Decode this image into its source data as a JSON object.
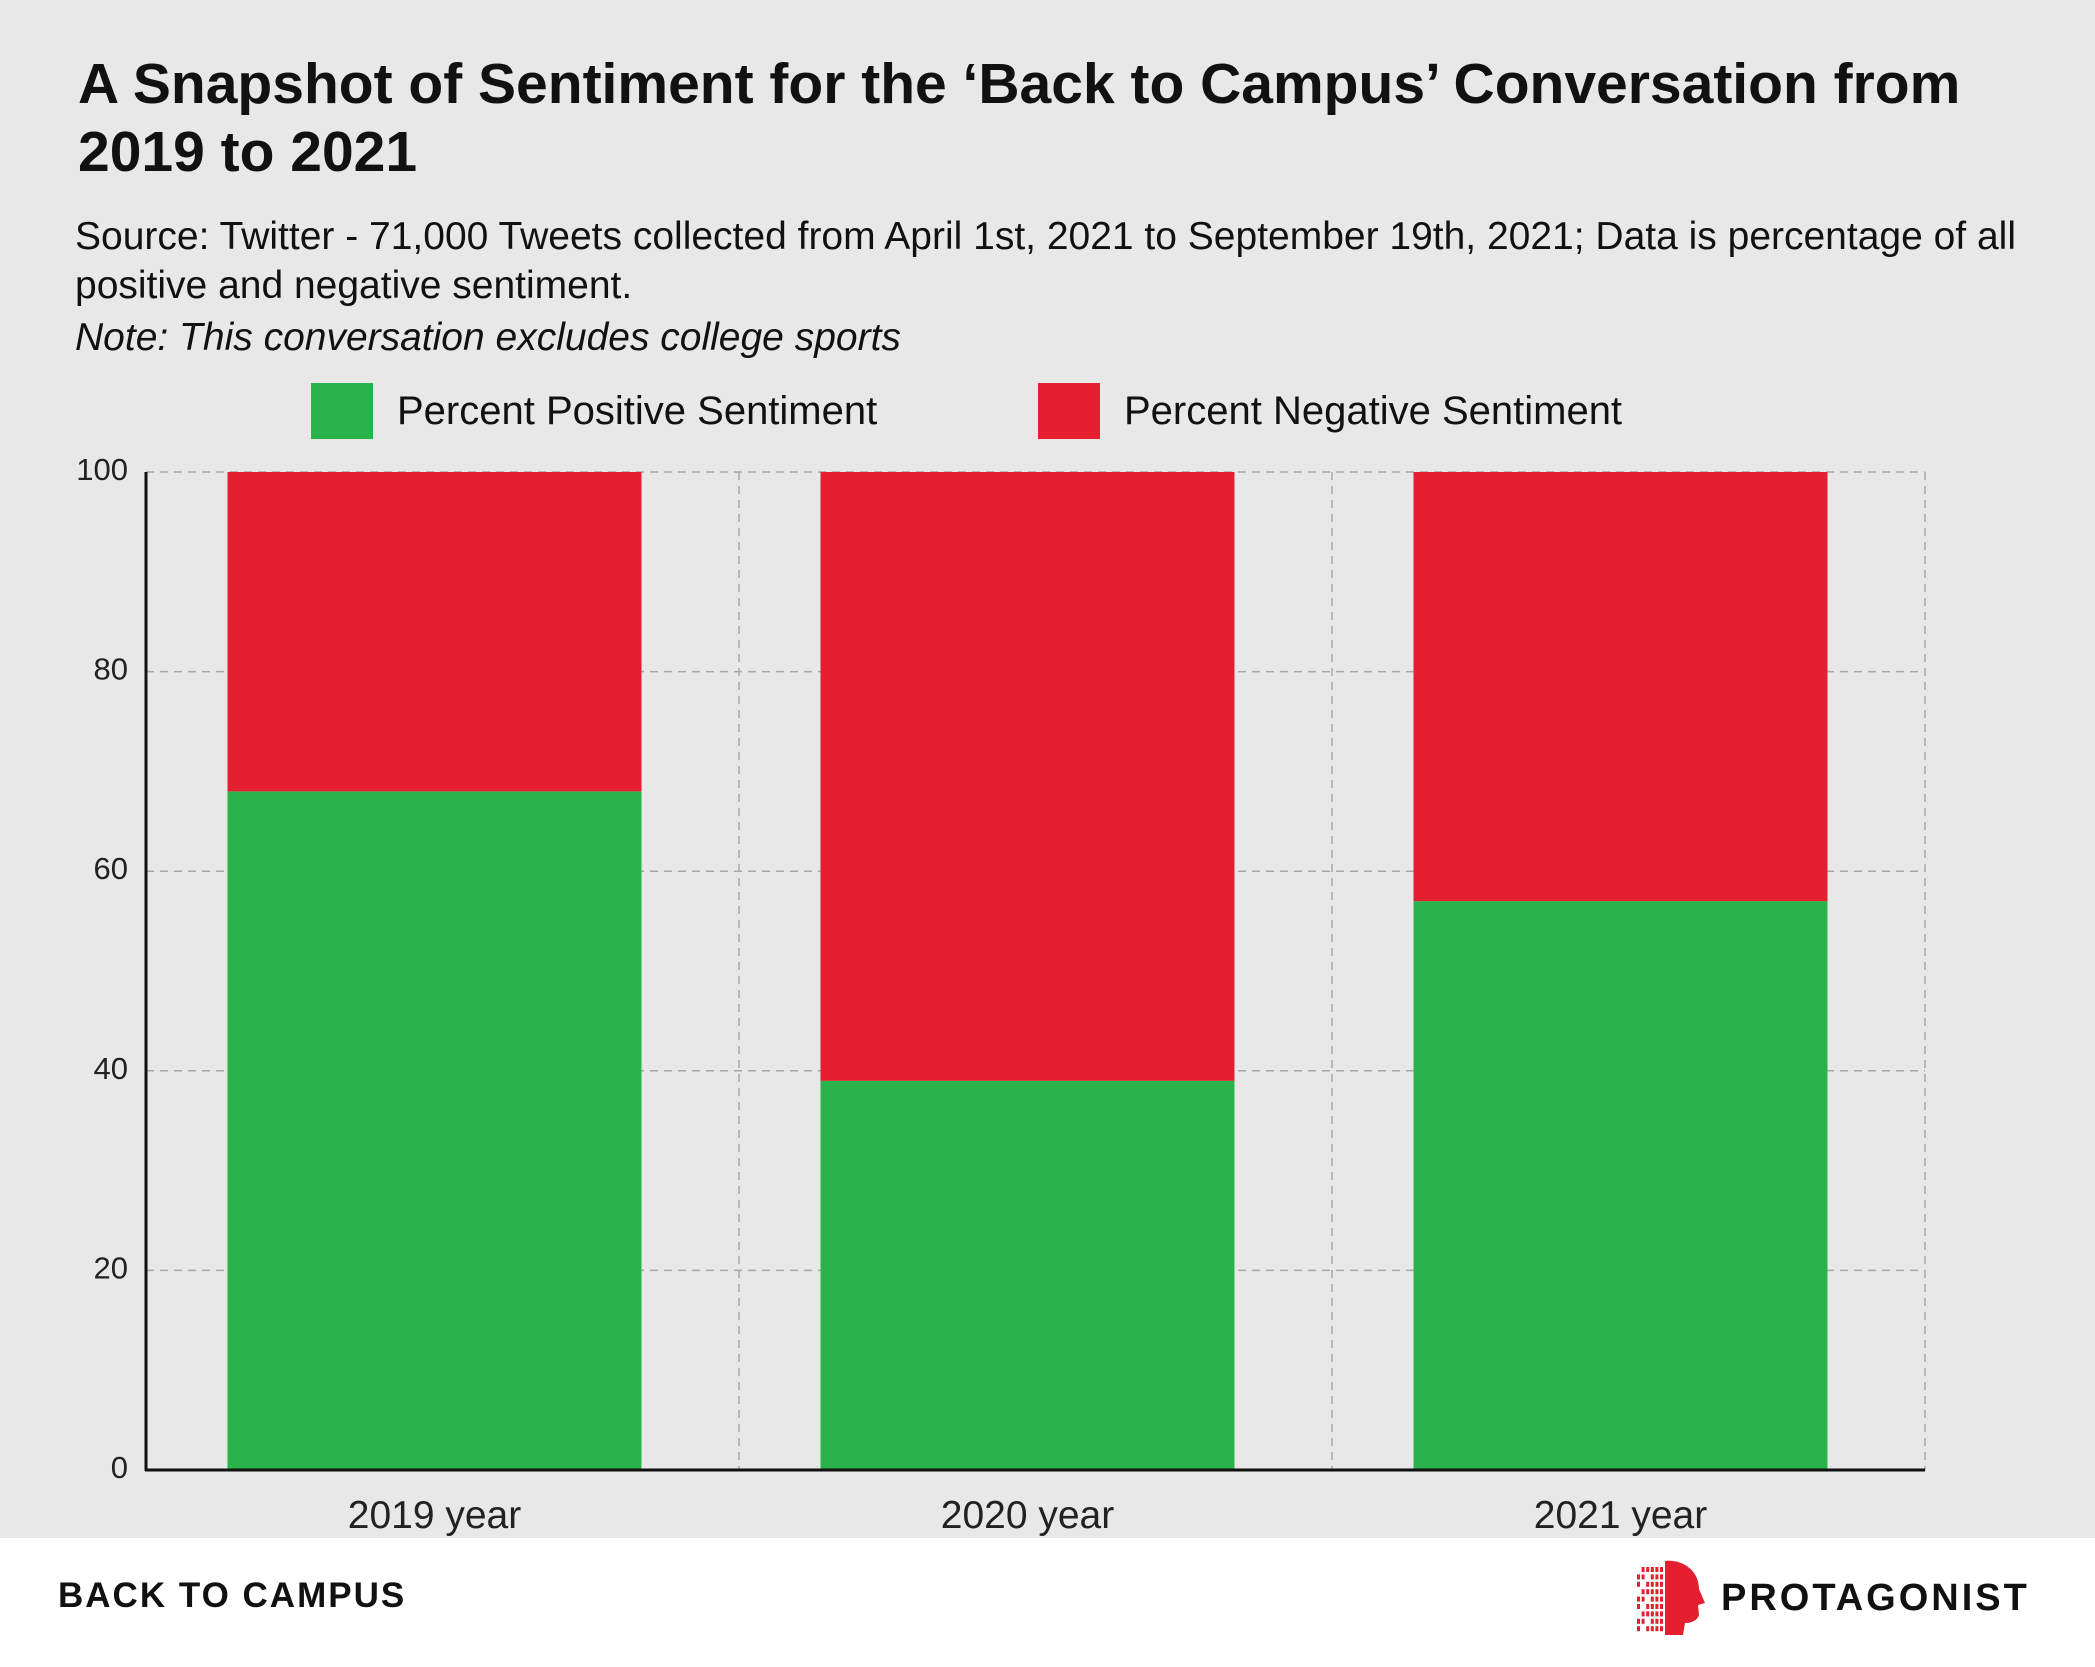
{
  "title": "A Snapshot of Sentiment for the ‘Back to Campus’ Conversation from 2019 to 2021",
  "subtitle": "Source: Twitter - 71,000 Tweets collected from April 1st, 2021 to September 19th, 2021; Data is percentage of all positive and negative sentiment.",
  "note": "Note: This conversation excludes college sports",
  "footer": {
    "label": "BACK TO CAMPUS",
    "brand": "PROTAGONIST"
  },
  "colors": {
    "positive": "#29b34a",
    "negative": "#e41f2f",
    "background": "#e7e8e7",
    "logo": "#e41f2f"
  },
  "icons": {
    "brand_logo": "protagonist-head-logo"
  },
  "chart_data": {
    "type": "bar",
    "stacked": true,
    "categories": [
      "2019 year",
      "2020 year",
      "2021 year"
    ],
    "series": [
      {
        "name": "Percent Positive Sentiment",
        "values": [
          68,
          39,
          57
        ]
      },
      {
        "name": "Percent Negative Sentiment",
        "values": [
          32,
          61,
          43
        ]
      }
    ],
    "ylim": [
      0,
      100
    ],
    "yticks": [
      "0",
      "20",
      "40",
      "60",
      "80",
      "100"
    ],
    "grid": true,
    "legend": "top-center"
  }
}
